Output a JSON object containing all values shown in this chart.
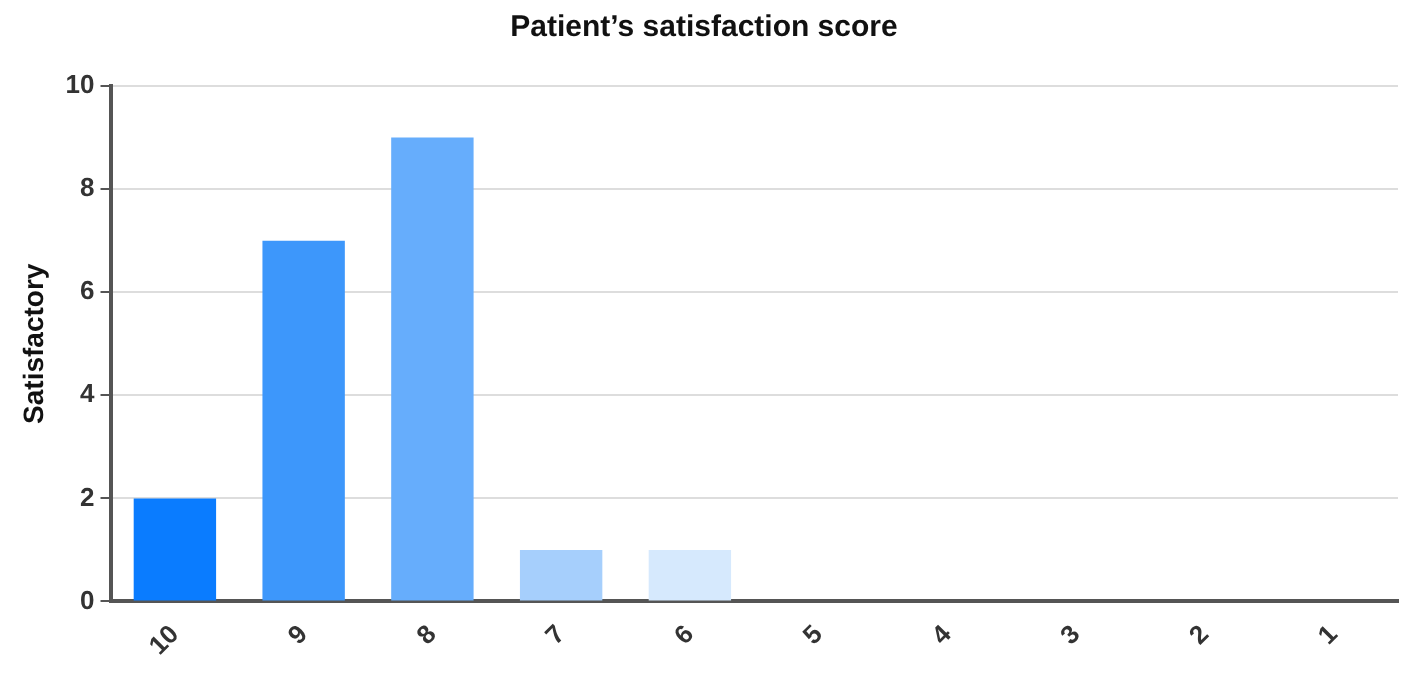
{
  "chart_data": {
    "type": "bar",
    "title": "Patient’s satisfaction score",
    "ylabel": "Satisfactory",
    "categories": [
      "10",
      "9",
      "8",
      "7",
      "6",
      "5",
      "4",
      "3",
      "2",
      "1"
    ],
    "values": [
      2,
      7,
      9,
      1,
      1,
      0,
      0,
      0,
      0,
      0
    ],
    "colors": [
      "#0a7cff",
      "#3d97fb",
      "#66adfc",
      "#a6cffc",
      "#d6e9fd",
      "#d6e9fd",
      "#d6e9fd",
      "#d6e9fd",
      "#d6e9fd",
      "#d6e9fd"
    ],
    "ylim": [
      0,
      10
    ],
    "yticks": [
      0,
      2,
      4,
      6,
      8,
      10
    ],
    "grid": "y",
    "legend": false
  }
}
